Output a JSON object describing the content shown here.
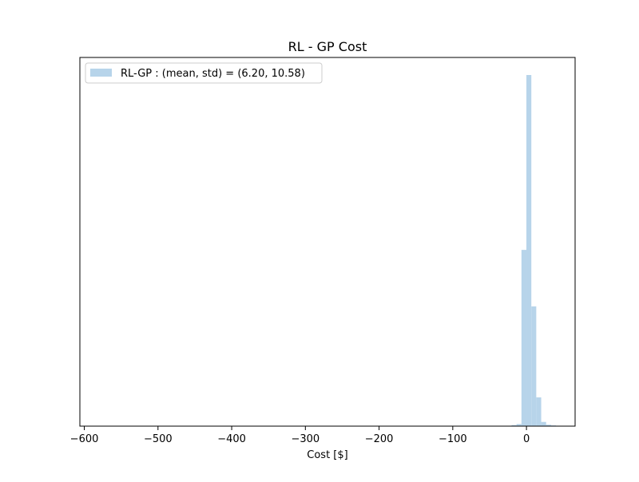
{
  "chart_data": {
    "type": "histogram",
    "title": "RL - GP Cost",
    "xlabel": "Cost [$]",
    "ylabel": "",
    "xlim": [
      -606,
      66
    ],
    "xticks": [
      -600,
      -500,
      -400,
      -300,
      -200,
      -100,
      0
    ],
    "xtick_labels": [
      "−600",
      "−500",
      "−400",
      "−300",
      "−200",
      "−100",
      "0"
    ],
    "y_axis_visible": false,
    "ylim": [
      0,
      1.05
    ],
    "legend": {
      "position": "upper-left",
      "labels": [
        "RL-GP : (mean, std) = (6.20, 10.58)"
      ]
    },
    "series": [
      {
        "name": "RL-GP : (mean, std) = (6.20, 10.58)",
        "color": "#b7d4ea",
        "bin_width": 6.7,
        "bins": [
          {
            "x0": -20.2,
            "value": 0.003
          },
          {
            "x0": -13.5,
            "value": 0.006
          },
          {
            "x0": -6.8,
            "value": 0.502
          },
          {
            "x0": -0.1,
            "value": 1.0
          },
          {
            "x0": 6.6,
            "value": 0.341
          },
          {
            "x0": 13.3,
            "value": 0.082
          },
          {
            "x0": 20.0,
            "value": 0.012
          },
          {
            "x0": 26.7,
            "value": 0.004
          },
          {
            "x0": 33.4,
            "value": 0.002
          },
          {
            "x0": -600.0,
            "value": 0.001
          }
        ]
      }
    ]
  },
  "colors": {
    "bar": "#b7d4ea",
    "axis": "#000000",
    "background": "#ffffff"
  }
}
